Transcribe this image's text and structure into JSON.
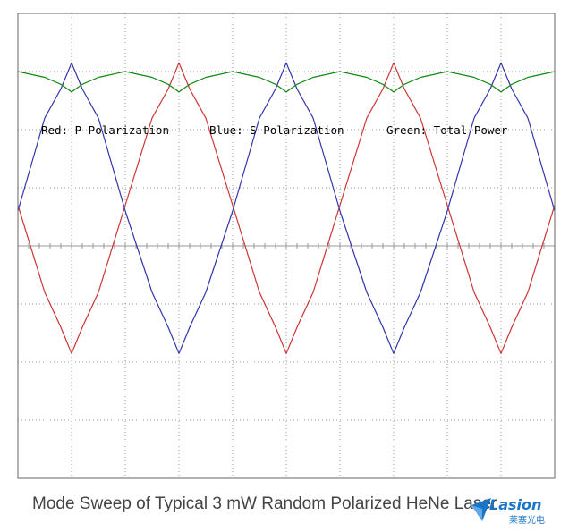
{
  "caption": "Mode Sweep of Typical 3 mW Random Polarized HeNe Laser",
  "legend": {
    "red": "Red: P Polarization",
    "blue": "Blue: S Polarization",
    "green": "Green: Total Power"
  },
  "logo": {
    "word": "Lasion",
    "cn": "莱塞光电"
  },
  "colors": {
    "p_polarization": "#cc3333",
    "s_polarization": "#3333aa",
    "total_power": "#118811",
    "grid": "#999999",
    "border": "#666666"
  },
  "chart_data": {
    "type": "line",
    "title": "Mode Sweep of Typical 3 mW Random Polarized HeNe Laser",
    "xlabel": "",
    "ylabel": "",
    "grid": true,
    "legend_placement": "center inside plot",
    "x_range": [
      0,
      10
    ],
    "y_range": [
      0,
      8
    ],
    "period_divisions": 2,
    "series": [
      {
        "name": "P Polarization",
        "color": "red",
        "x": [
          0,
          0.5,
          0.8,
          1,
          1.2,
          1.5,
          2,
          2.5,
          2.8,
          3,
          3.2,
          3.5,
          4,
          4.5,
          4.8,
          5,
          5.2,
          5.5,
          6,
          6.5,
          6.8,
          7,
          7.2,
          7.5,
          8,
          8.5,
          8.8,
          9,
          9.2,
          9.5,
          10
        ],
        "y": [
          4.7,
          3.2,
          2.6,
          2.15,
          2.6,
          3.2,
          4.7,
          6.2,
          6.7,
          7.15,
          6.7,
          6.2,
          4.7,
          3.2,
          2.6,
          2.15,
          2.6,
          3.2,
          4.7,
          6.2,
          6.7,
          7.15,
          6.7,
          6.2,
          4.7,
          3.2,
          2.6,
          2.15,
          2.6,
          3.2,
          4.7
        ]
      },
      {
        "name": "S Polarization",
        "color": "blue",
        "x": [
          0,
          0.5,
          0.8,
          1,
          1.2,
          1.5,
          2,
          2.5,
          2.8,
          3,
          3.2,
          3.5,
          4,
          4.5,
          4.8,
          5,
          5.2,
          5.5,
          6,
          6.5,
          6.8,
          7,
          7.2,
          7.5,
          8,
          8.5,
          8.8,
          9,
          9.2,
          9.5,
          10
        ],
        "y": [
          4.6,
          6.2,
          6.7,
          7.15,
          6.7,
          6.2,
          4.6,
          3.2,
          2.6,
          2.15,
          2.6,
          3.2,
          4.6,
          6.2,
          6.7,
          7.15,
          6.7,
          6.2,
          4.6,
          3.2,
          2.6,
          2.15,
          2.6,
          3.2,
          4.6,
          6.2,
          6.7,
          7.15,
          6.7,
          6.2,
          4.6
        ]
      },
      {
        "name": "Total Power",
        "color": "green",
        "x": [
          0,
          0.5,
          0.8,
          1,
          1.2,
          1.5,
          2,
          2.5,
          2.8,
          3,
          3.2,
          3.5,
          4,
          4.5,
          4.8,
          5,
          5.2,
          5.5,
          6,
          6.5,
          6.8,
          7,
          7.2,
          7.5,
          8,
          8.5,
          8.8,
          9,
          9.2,
          9.5,
          10
        ],
        "y": [
          7.0,
          6.9,
          6.78,
          6.65,
          6.78,
          6.9,
          7.0,
          6.9,
          6.78,
          6.65,
          6.78,
          6.9,
          7.0,
          6.9,
          6.78,
          6.65,
          6.78,
          6.9,
          7.0,
          6.9,
          6.78,
          6.65,
          6.78,
          6.9,
          7.0,
          6.9,
          6.78,
          6.65,
          6.78,
          6.9,
          7.0
        ]
      }
    ]
  }
}
